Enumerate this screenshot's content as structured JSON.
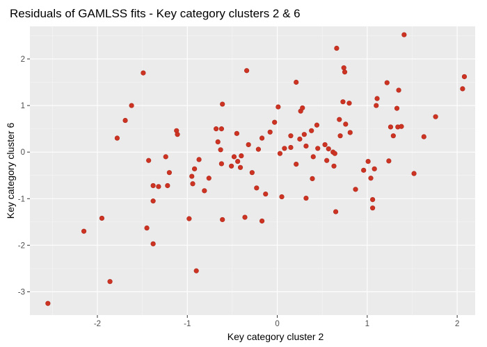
{
  "chart_data": {
    "type": "scatter",
    "title": "Residuals of GAMLSS fits - Key category clusters 2 & 6",
    "xlabel": "Key category cluster 2",
    "ylabel": "Key category cluster 6",
    "xlim": [
      -2.75,
      2.2
    ],
    "ylim": [
      -3.5,
      2.7
    ],
    "xticks": [
      -2,
      -1,
      0,
      1,
      2
    ],
    "yticks": [
      -3,
      -2,
      -1,
      0,
      1,
      2
    ],
    "grid": true,
    "legend": "none",
    "point_color": "#cc3322",
    "panel_color": "#ebebeb",
    "points": [
      {
        "x": -2.55,
        "y": -3.25
      },
      {
        "x": -2.15,
        "y": -1.7
      },
      {
        "x": -1.95,
        "y": -1.42
      },
      {
        "x": -1.86,
        "y": -2.78
      },
      {
        "x": -1.78,
        "y": 0.3
      },
      {
        "x": -1.69,
        "y": 0.68
      },
      {
        "x": -1.62,
        "y": 1.0
      },
      {
        "x": -1.49,
        "y": 1.7
      },
      {
        "x": -1.45,
        "y": -1.63
      },
      {
        "x": -1.43,
        "y": -0.18
      },
      {
        "x": -1.38,
        "y": -0.72
      },
      {
        "x": -1.38,
        "y": -1.05
      },
      {
        "x": -1.38,
        "y": -1.97
      },
      {
        "x": -1.32,
        "y": -0.74
      },
      {
        "x": -1.24,
        "y": -0.1
      },
      {
        "x": -1.22,
        "y": -0.72
      },
      {
        "x": -1.2,
        "y": -0.44
      },
      {
        "x": -1.12,
        "y": 0.46
      },
      {
        "x": -1.11,
        "y": 0.38
      },
      {
        "x": -0.98,
        "y": -1.43
      },
      {
        "x": -0.95,
        "y": -0.52
      },
      {
        "x": -0.94,
        "y": -0.68
      },
      {
        "x": -0.92,
        "y": -0.36
      },
      {
        "x": -0.9,
        "y": -2.55
      },
      {
        "x": -0.87,
        "y": -0.16
      },
      {
        "x": -0.81,
        "y": -0.83
      },
      {
        "x": -0.76,
        "y": -0.56
      },
      {
        "x": -0.68,
        "y": 0.5
      },
      {
        "x": -0.66,
        "y": 0.22
      },
      {
        "x": -0.63,
        "y": 0.05
      },
      {
        "x": -0.62,
        "y": -0.25
      },
      {
        "x": -0.62,
        "y": 0.5
      },
      {
        "x": -0.61,
        "y": 1.03
      },
      {
        "x": -0.61,
        "y": -1.45
      },
      {
        "x": -0.51,
        "y": -0.3
      },
      {
        "x": -0.48,
        "y": -0.1
      },
      {
        "x": -0.45,
        "y": 0.4
      },
      {
        "x": -0.44,
        "y": -0.2
      },
      {
        "x": -0.41,
        "y": -0.33
      },
      {
        "x": -0.4,
        "y": -0.08
      },
      {
        "x": -0.36,
        "y": -1.4
      },
      {
        "x": -0.34,
        "y": 1.75
      },
      {
        "x": -0.32,
        "y": 0.16
      },
      {
        "x": -0.28,
        "y": -0.44
      },
      {
        "x": -0.23,
        "y": -0.77
      },
      {
        "x": -0.21,
        "y": 0.06
      },
      {
        "x": -0.17,
        "y": -1.48
      },
      {
        "x": -0.17,
        "y": 0.3
      },
      {
        "x": -0.13,
        "y": -0.9
      },
      {
        "x": -0.08,
        "y": 0.43
      },
      {
        "x": -0.03,
        "y": 0.64
      },
      {
        "x": 0.01,
        "y": 0.97
      },
      {
        "x": 0.03,
        "y": -0.03
      },
      {
        "x": 0.05,
        "y": -0.96
      },
      {
        "x": 0.08,
        "y": 0.08
      },
      {
        "x": 0.15,
        "y": 0.1
      },
      {
        "x": 0.15,
        "y": 0.35
      },
      {
        "x": 0.21,
        "y": 1.5
      },
      {
        "x": 0.21,
        "y": -0.26
      },
      {
        "x": 0.25,
        "y": 0.28
      },
      {
        "x": 0.26,
        "y": 0.88
      },
      {
        "x": 0.28,
        "y": 0.95
      },
      {
        "x": 0.3,
        "y": 0.38
      },
      {
        "x": 0.32,
        "y": -0.99
      },
      {
        "x": 0.32,
        "y": 0.13
      },
      {
        "x": 0.38,
        "y": 0.46
      },
      {
        "x": 0.39,
        "y": -0.57
      },
      {
        "x": 0.4,
        "y": -0.1
      },
      {
        "x": 0.44,
        "y": 0.58
      },
      {
        "x": 0.45,
        "y": 0.08
      },
      {
        "x": 0.53,
        "y": 0.16
      },
      {
        "x": 0.55,
        "y": -0.18
      },
      {
        "x": 0.57,
        "y": 0.07
      },
      {
        "x": 0.62,
        "y": 0.0
      },
      {
        "x": 0.63,
        "y": -0.3
      },
      {
        "x": 0.64,
        "y": -0.03
      },
      {
        "x": 0.65,
        "y": -1.28
      },
      {
        "x": 0.66,
        "y": 2.23
      },
      {
        "x": 0.69,
        "y": 0.7
      },
      {
        "x": 0.7,
        "y": 0.35
      },
      {
        "x": 0.73,
        "y": 1.08
      },
      {
        "x": 0.74,
        "y": 1.81
      },
      {
        "x": 0.75,
        "y": 1.72
      },
      {
        "x": 0.76,
        "y": 0.6
      },
      {
        "x": 0.8,
        "y": 1.05
      },
      {
        "x": 0.81,
        "y": 0.42
      },
      {
        "x": 0.87,
        "y": -0.8
      },
      {
        "x": 0.96,
        "y": -0.39
      },
      {
        "x": 1.01,
        "y": -0.2
      },
      {
        "x": 1.04,
        "y": -0.56
      },
      {
        "x": 1.06,
        "y": -1.02
      },
      {
        "x": 1.06,
        "y": -1.2
      },
      {
        "x": 1.08,
        "y": -0.36
      },
      {
        "x": 1.1,
        "y": 1.0
      },
      {
        "x": 1.11,
        "y": 1.15
      },
      {
        "x": 1.22,
        "y": 1.49
      },
      {
        "x": 1.24,
        "y": -0.19
      },
      {
        "x": 1.26,
        "y": 0.54
      },
      {
        "x": 1.29,
        "y": 0.35
      },
      {
        "x": 1.33,
        "y": 0.94
      },
      {
        "x": 1.34,
        "y": 0.54
      },
      {
        "x": 1.35,
        "y": 1.33
      },
      {
        "x": 1.38,
        "y": 0.55
      },
      {
        "x": 1.41,
        "y": 2.52
      },
      {
        "x": 1.52,
        "y": -0.46
      },
      {
        "x": 1.63,
        "y": 0.33
      },
      {
        "x": 1.76,
        "y": 0.76
      },
      {
        "x": 2.06,
        "y": 1.36
      },
      {
        "x": 2.08,
        "y": 1.62
      }
    ]
  }
}
